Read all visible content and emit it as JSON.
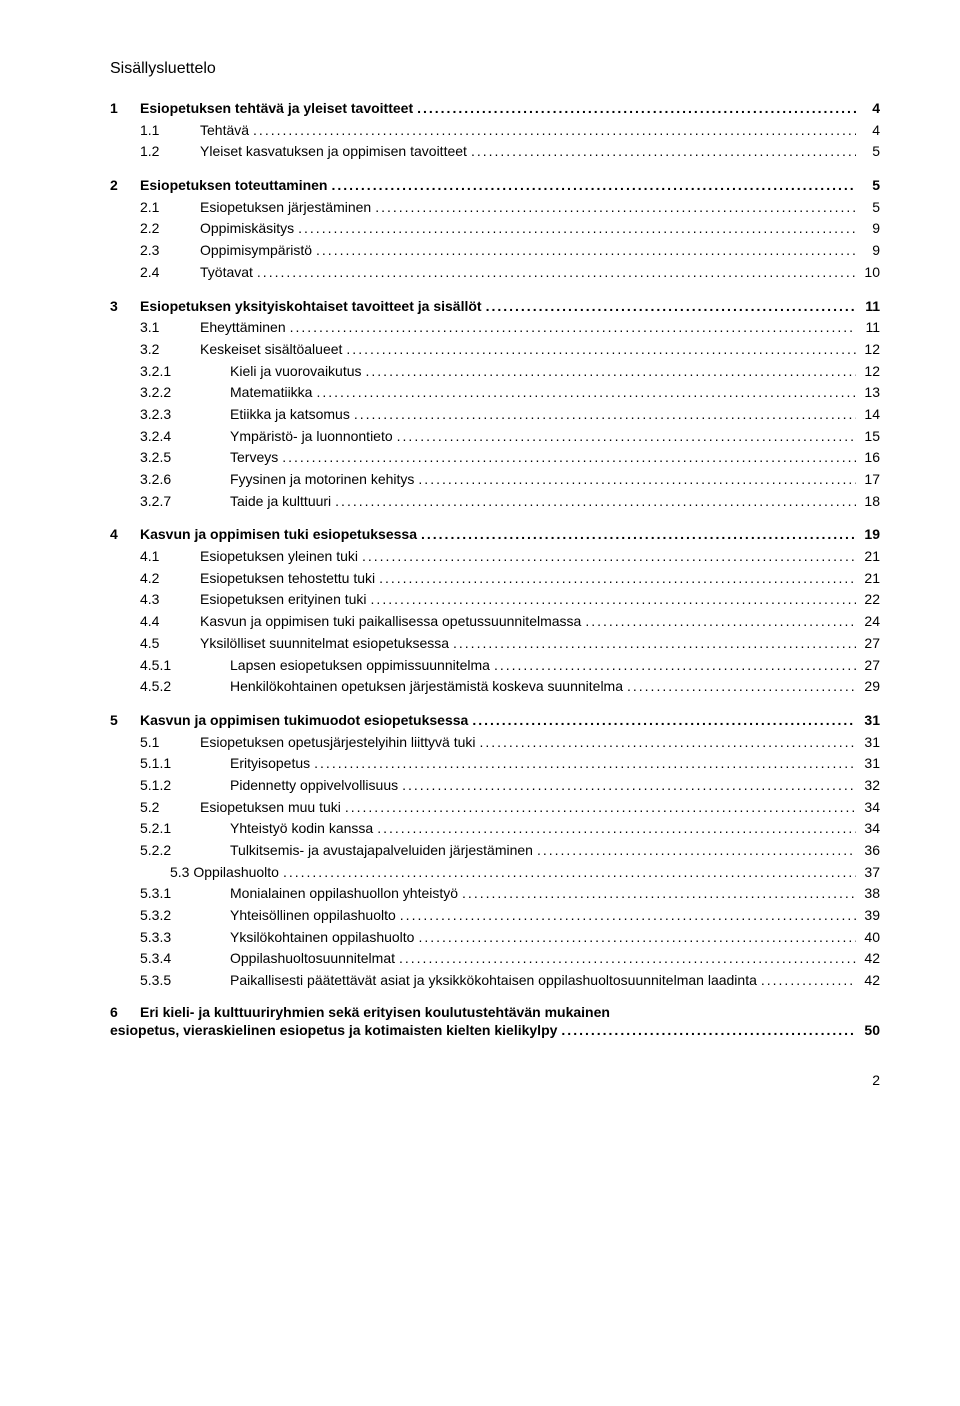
{
  "toc_title": "Sisällysluettelo",
  "page_number": "2",
  "colors": {
    "text": "#000000",
    "background": "#ffffff"
  },
  "typography": {
    "font_family": "Arial",
    "body_size_pt": 11,
    "title_size_pt": 12
  },
  "entries": [
    {
      "level": 1,
      "num": "1",
      "label": "Esiopetuksen tehtävä ja yleiset tavoitteet",
      "page": "4"
    },
    {
      "level": 2,
      "num": "1.1",
      "label": "Tehtävä",
      "page": "4"
    },
    {
      "level": 2,
      "num": "1.2",
      "label": "Yleiset kasvatuksen ja oppimisen tavoitteet",
      "page": "5"
    },
    {
      "level": 1,
      "num": "2",
      "label": "Esiopetuksen toteuttaminen",
      "page": "5"
    },
    {
      "level": 2,
      "num": "2.1",
      "label": "Esiopetuksen järjestäminen",
      "page": "5"
    },
    {
      "level": 2,
      "num": "2.2",
      "label": "Oppimiskäsitys",
      "page": "9"
    },
    {
      "level": 2,
      "num": "2.3",
      "label": "Oppimisympäristö",
      "page": "9"
    },
    {
      "level": 2,
      "num": "2.4",
      "label": "Työtavat",
      "page": "10"
    },
    {
      "level": 1,
      "num": "3",
      "label": "Esiopetuksen yksityiskohtaiset tavoitteet ja sisällöt",
      "page": "11"
    },
    {
      "level": 2,
      "num": "3.1",
      "label": "Eheyttäminen",
      "page": "11"
    },
    {
      "level": 2,
      "num": "3.2",
      "label": "Keskeiset sisältöalueet",
      "page": "12"
    },
    {
      "level": 3,
      "num": "3.2.1",
      "label": "Kieli ja vuorovaikutus",
      "page": "12"
    },
    {
      "level": 3,
      "num": "3.2.2",
      "label": "Matematiikka",
      "page": "13"
    },
    {
      "level": 3,
      "num": "3.2.3",
      "label": "Etiikka ja katsomus",
      "page": "14"
    },
    {
      "level": 3,
      "num": "3.2.4",
      "label": "Ympäristö- ja luonnontieto",
      "page": "15"
    },
    {
      "level": 3,
      "num": "3.2.5",
      "label": "Terveys",
      "page": "16"
    },
    {
      "level": 3,
      "num": "3.2.6",
      "label": "Fyysinen ja motorinen kehitys",
      "page": "17"
    },
    {
      "level": 3,
      "num": "3.2.7",
      "label": "Taide ja kulttuuri",
      "page": "18"
    },
    {
      "level": 1,
      "num": "4",
      "label": "Kasvun ja oppimisen tuki esiopetuksessa",
      "page": "19"
    },
    {
      "level": 2,
      "num": "4.1",
      "label": "Esiopetuksen yleinen tuki",
      "page": "21"
    },
    {
      "level": 2,
      "num": "4.2",
      "label": "Esiopetuksen tehostettu tuki",
      "page": "21"
    },
    {
      "level": 2,
      "num": "4.3",
      "label": "Esiopetuksen erityinen tuki",
      "page": "22"
    },
    {
      "level": 2,
      "num": "4.4",
      "label": "Kasvun ja oppimisen tuki paikallisessa opetussuunnitelmassa",
      "page": "24"
    },
    {
      "level": 2,
      "num": "4.5",
      "label": "Yksilölliset suunnitelmat esiopetuksessa",
      "page": "27"
    },
    {
      "level": 3,
      "num": "4.5.1",
      "label": "Lapsen esiopetuksen oppimissuunnitelma",
      "page": "27"
    },
    {
      "level": 3,
      "num": "4.5.2",
      "label": "Henkilökohtainen opetuksen järjestämistä koskeva suunnitelma",
      "page": "29"
    },
    {
      "level": 1,
      "num": "5",
      "label": "Kasvun ja oppimisen tukimuodot esiopetuksessa",
      "page": "31"
    },
    {
      "level": 2,
      "num": "5.1",
      "label": "Esiopetuksen opetusjärjestelyihin liittyvä tuki",
      "page": "31"
    },
    {
      "level": 3,
      "num": "5.1.1",
      "label": "Erityisopetus",
      "page": "31"
    },
    {
      "level": 3,
      "num": "5.1.2",
      "label": "Pidennetty oppivelvollisuus",
      "page": "32"
    },
    {
      "level": 2,
      "num": "5.2",
      "label": "Esiopetuksen muu tuki",
      "page": "34"
    },
    {
      "level": 3,
      "num": "5.2.1",
      "label": "Yhteistyö kodin kanssa",
      "page": "34"
    },
    {
      "level": 3,
      "num": "5.2.2",
      "label": "Tulkitsemis- ja avustajapalveluiden järjestäminen",
      "page": "36"
    },
    {
      "level": 2,
      "num": "5.3",
      "label": "Oppilashuolto",
      "page": "37",
      "nonum_prefix": true
    },
    {
      "level": 3,
      "num": "5.3.1",
      "label": "Monialainen oppilashuollon yhteistyö",
      "page": "38"
    },
    {
      "level": 3,
      "num": "5.3.2",
      "label": "Yhteisöllinen oppilashuolto",
      "page": "39"
    },
    {
      "level": 3,
      "num": "5.3.3",
      "label": "Yksilökohtainen oppilashuolto",
      "page": "40"
    },
    {
      "level": 3,
      "num": "5.3.4",
      "label": "Oppilashuoltosuunnitelmat",
      "page": "42"
    },
    {
      "level": 3,
      "num": "5.3.5",
      "label": "Paikallisesti päätettävät asiat ja yksikkökohtaisen oppilashuoltosuunnitelman laadinta",
      "page": "42"
    },
    {
      "level": 1,
      "num": "6",
      "label": "Eri kieli- ja kulttuuriryhmien sekä erityisen koulutustehtävän mukainen esiopetus, vieraskielinen esiopetus ja kotimaisten kielten kielikylpy",
      "page": "50",
      "wrap": true
    }
  ]
}
